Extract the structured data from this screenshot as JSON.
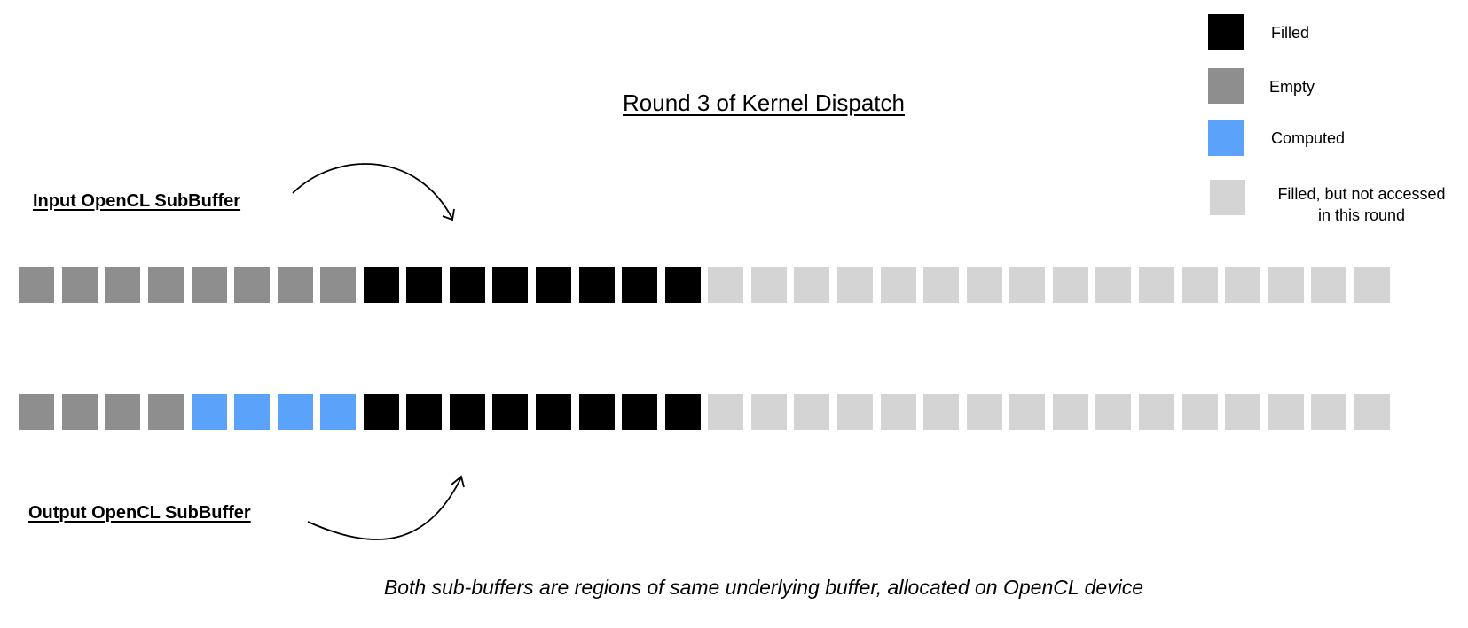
{
  "title": "Round 3 of Kernel Dispatch",
  "colors": {
    "filled": "#000000",
    "empty": "#8e8e8e",
    "computed": "#5aa2fa",
    "filled_not_accessed": "#d4d4d4"
  },
  "legend": [
    {
      "state": "filled",
      "label": "Filled"
    },
    {
      "state": "empty",
      "label": "Empty"
    },
    {
      "state": "computed",
      "label": "Computed"
    },
    {
      "state": "filled_not_accessed",
      "label_line1": "Filled, but not accessed",
      "label_line2": "in this round"
    }
  ],
  "input_buffer": {
    "label": "Input OpenCL SubBuffer",
    "cells": [
      "empty",
      "empty",
      "empty",
      "empty",
      "empty",
      "empty",
      "empty",
      "empty",
      "filled",
      "filled",
      "filled",
      "filled",
      "filled",
      "filled",
      "filled",
      "filled",
      "filled_not_accessed",
      "filled_not_accessed",
      "filled_not_accessed",
      "filled_not_accessed",
      "filled_not_accessed",
      "filled_not_accessed",
      "filled_not_accessed",
      "filled_not_accessed",
      "filled_not_accessed",
      "filled_not_accessed",
      "filled_not_accessed",
      "filled_not_accessed",
      "filled_not_accessed",
      "filled_not_accessed",
      "filled_not_accessed",
      "filled_not_accessed"
    ]
  },
  "output_buffer": {
    "label": "Output OpenCL SubBuffer",
    "cells": [
      "empty",
      "empty",
      "empty",
      "empty",
      "computed",
      "computed",
      "computed",
      "computed",
      "filled",
      "filled",
      "filled",
      "filled",
      "filled",
      "filled",
      "filled",
      "filled",
      "filled_not_accessed",
      "filled_not_accessed",
      "filled_not_accessed",
      "filled_not_accessed",
      "filled_not_accessed",
      "filled_not_accessed",
      "filled_not_accessed",
      "filled_not_accessed",
      "filled_not_accessed",
      "filled_not_accessed",
      "filled_not_accessed",
      "filled_not_accessed",
      "filled_not_accessed",
      "filled_not_accessed",
      "filled_not_accessed",
      "filled_not_accessed"
    ]
  },
  "caption": "Both sub-buffers are regions of same underlying buffer, allocated on OpenCL device"
}
